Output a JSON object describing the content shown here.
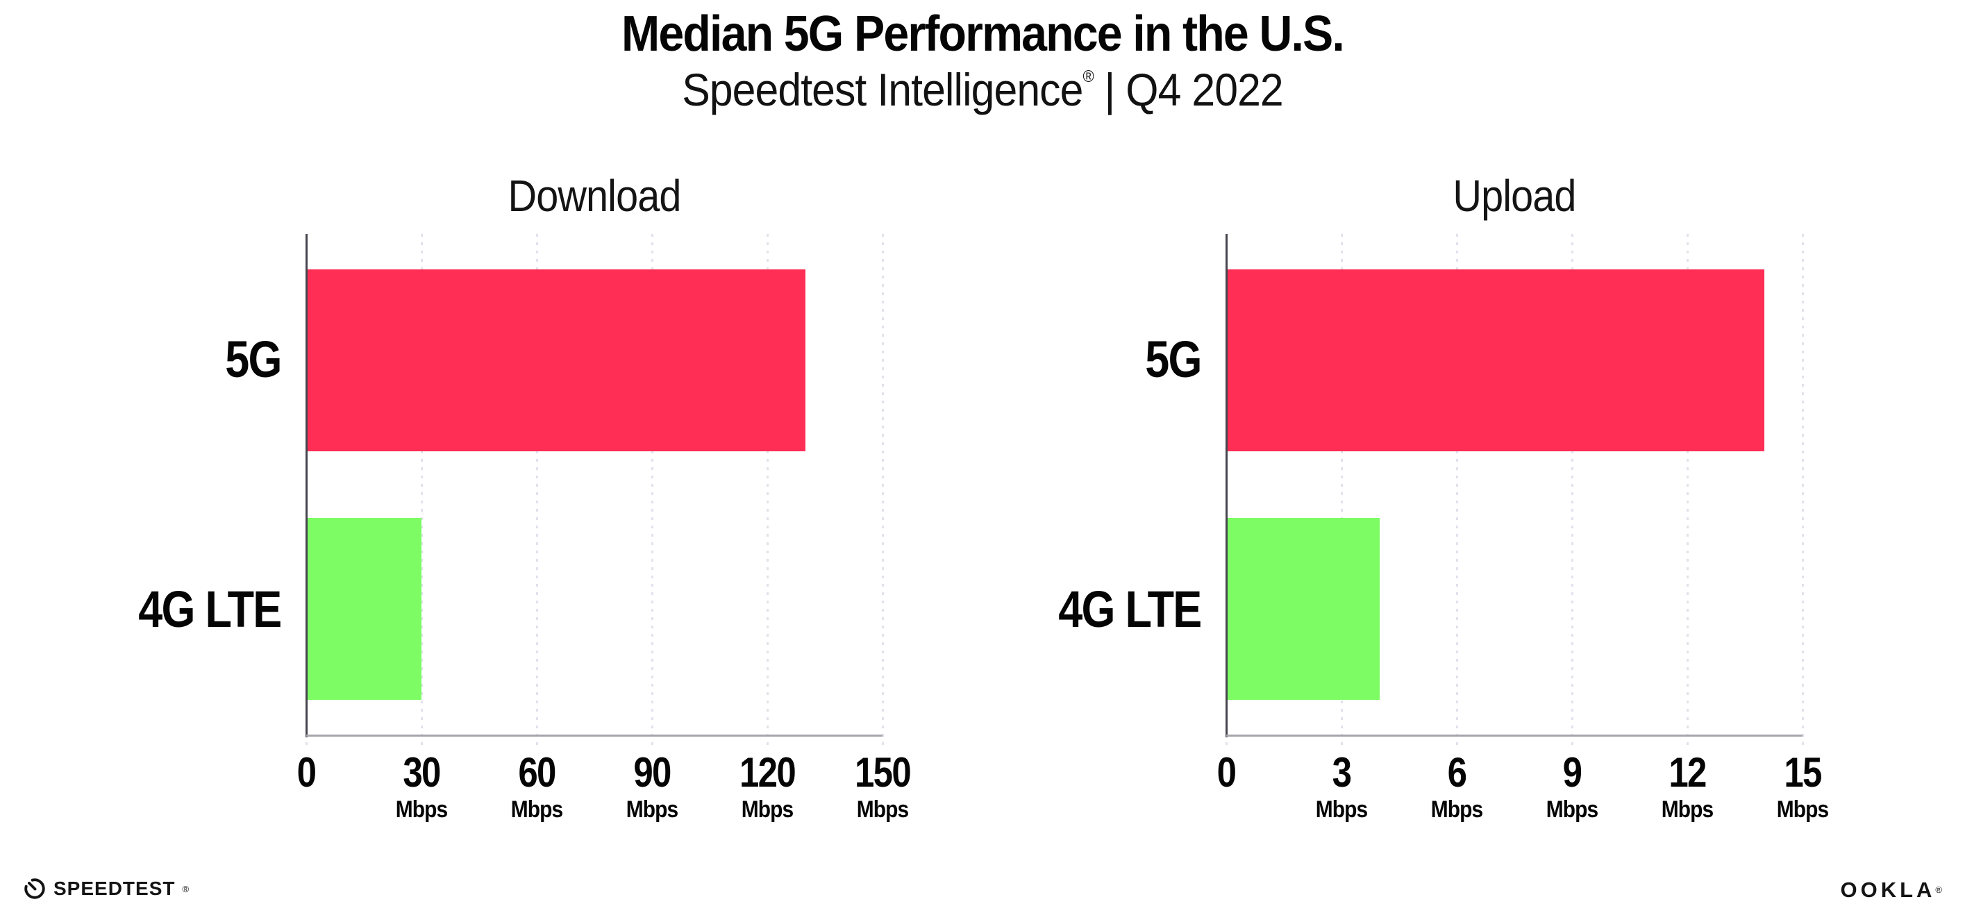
{
  "header": {
    "title": "Median 5G Performance in the U.S.",
    "subtitle_brand": "Speedtest Intelligence",
    "subtitle_mark": "®",
    "subtitle_rest": "| Q4 2022"
  },
  "colors": {
    "bar_5g": "#ff2e55",
    "bar_4g_lte": "#7dfc64",
    "gridline": "#e2e2ec",
    "y_axis": "#46464e",
    "x_axis": "#a6a6ad",
    "text": "#050505"
  },
  "chart_data": [
    {
      "type": "bar",
      "orientation": "horizontal",
      "title": "Download",
      "categories": [
        "5G",
        "4G LTE"
      ],
      "values": [
        130,
        30
      ],
      "unit": "Mbps",
      "xlim": [
        0,
        150
      ],
      "xticks": [
        0,
        30,
        60,
        90,
        120,
        150
      ],
      "bar_colors": [
        "#ff2e55",
        "#7dfc64"
      ],
      "grid": "vertical-dotted",
      "legend": "none",
      "value_labels_shown": false
    },
    {
      "type": "bar",
      "orientation": "horizontal",
      "title": "Upload",
      "categories": [
        "5G",
        "4G LTE"
      ],
      "values": [
        14,
        4
      ],
      "unit": "Mbps",
      "xlim": [
        0,
        15
      ],
      "xticks": [
        0,
        3,
        6,
        9,
        12,
        15
      ],
      "bar_colors": [
        "#ff2e55",
        "#7dfc64"
      ],
      "grid": "vertical-dotted",
      "legend": "none",
      "value_labels_shown": false
    }
  ],
  "footer": {
    "speedtest_label": "SPEEDTEST",
    "speedtest_mark": "®",
    "ookla_label": "OOKLA",
    "ookla_mark": "®"
  }
}
